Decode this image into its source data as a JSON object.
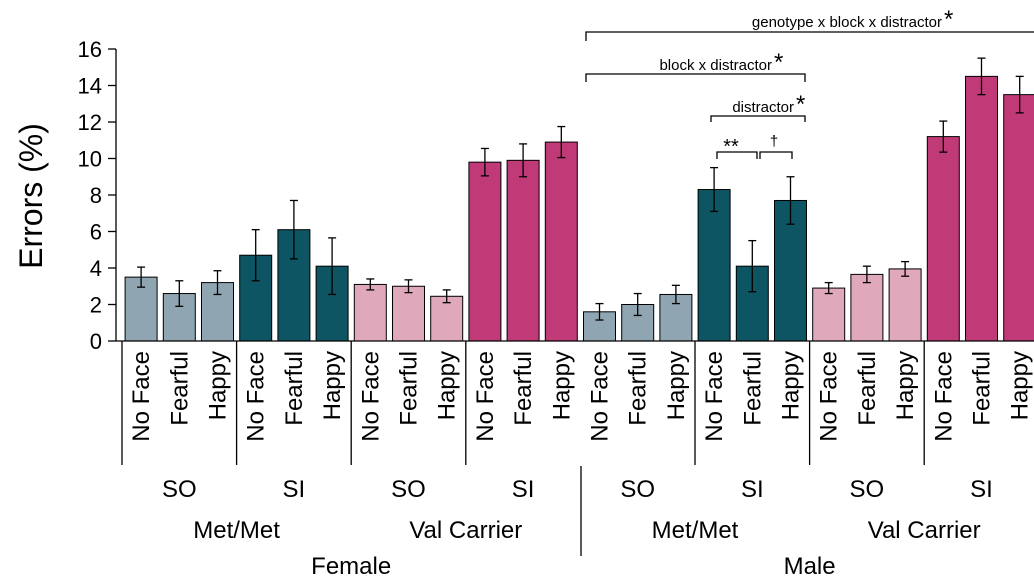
{
  "chart_data": {
    "type": "bar",
    "ylabel": "Errors (%)",
    "ylim": [
      0,
      16
    ],
    "yticks": [
      0,
      2,
      4,
      6,
      8,
      10,
      12,
      14,
      16
    ],
    "grid": false,
    "colors": {
      "met_so": "#8fa5b1",
      "met_si": "#0d5562",
      "val_so": "#e0a9bb",
      "val_si": "#c13a78"
    },
    "bars": [
      {
        "category": "No Face",
        "sex": "Female",
        "genotype": "Met/Met",
        "block": "SO",
        "value": 3.5,
        "error": 0.55,
        "color_key": "met_so"
      },
      {
        "category": "Fearful",
        "sex": "Female",
        "genotype": "Met/Met",
        "block": "SO",
        "value": 2.6,
        "error": 0.7,
        "color_key": "met_so"
      },
      {
        "category": "Happy",
        "sex": "Female",
        "genotype": "Met/Met",
        "block": "SO",
        "value": 3.2,
        "error": 0.65,
        "color_key": "met_so"
      },
      {
        "category": "No Face",
        "sex": "Female",
        "genotype": "Met/Met",
        "block": "SI",
        "value": 4.7,
        "error": 1.4,
        "color_key": "met_si"
      },
      {
        "category": "Fearful",
        "sex": "Female",
        "genotype": "Met/Met",
        "block": "SI",
        "value": 6.1,
        "error": 1.6,
        "color_key": "met_si"
      },
      {
        "category": "Happy",
        "sex": "Female",
        "genotype": "Met/Met",
        "block": "SI",
        "value": 4.1,
        "error": 1.55,
        "color_key": "met_si"
      },
      {
        "category": "No Face",
        "sex": "Female",
        "genotype": "Val Carrier",
        "block": "SO",
        "value": 3.1,
        "error": 0.3,
        "color_key": "val_so"
      },
      {
        "category": "Fearful",
        "sex": "Female",
        "genotype": "Val Carrier",
        "block": "SO",
        "value": 3.0,
        "error": 0.35,
        "color_key": "val_so"
      },
      {
        "category": "Happy",
        "sex": "Female",
        "genotype": "Val Carrier",
        "block": "SO",
        "value": 2.45,
        "error": 0.35,
        "color_key": "val_so"
      },
      {
        "category": "No Face",
        "sex": "Female",
        "genotype": "Val Carrier",
        "block": "SI",
        "value": 9.8,
        "error": 0.75,
        "color_key": "val_si"
      },
      {
        "category": "Fearful",
        "sex": "Female",
        "genotype": "Val Carrier",
        "block": "SI",
        "value": 9.9,
        "error": 0.9,
        "color_key": "val_si"
      },
      {
        "category": "Happy",
        "sex": "Female",
        "genotype": "Val Carrier",
        "block": "SI",
        "value": 10.9,
        "error": 0.85,
        "color_key": "val_si"
      },
      {
        "category": "No Face",
        "sex": "Male",
        "genotype": "Met/Met",
        "block": "SO",
        "value": 1.6,
        "error": 0.45,
        "color_key": "met_so"
      },
      {
        "category": "Fearful",
        "sex": "Male",
        "genotype": "Met/Met",
        "block": "SO",
        "value": 2.0,
        "error": 0.6,
        "color_key": "met_so"
      },
      {
        "category": "Happy",
        "sex": "Male",
        "genotype": "Met/Met",
        "block": "SO",
        "value": 2.55,
        "error": 0.5,
        "color_key": "met_so"
      },
      {
        "category": "No Face",
        "sex": "Male",
        "genotype": "Met/Met",
        "block": "SI",
        "value": 8.3,
        "error": 1.2,
        "color_key": "met_si"
      },
      {
        "category": "Fearful",
        "sex": "Male",
        "genotype": "Met/Met",
        "block": "SI",
        "value": 4.1,
        "error": 1.4,
        "color_key": "met_si"
      },
      {
        "category": "Happy",
        "sex": "Male",
        "genotype": "Met/Met",
        "block": "SI",
        "value": 7.7,
        "error": 1.3,
        "color_key": "met_si"
      },
      {
        "category": "No Face",
        "sex": "Male",
        "genotype": "Val Carrier",
        "block": "SO",
        "value": 2.9,
        "error": 0.3,
        "color_key": "val_so"
      },
      {
        "category": "Fearful",
        "sex": "Male",
        "genotype": "Val Carrier",
        "block": "SO",
        "value": 3.65,
        "error": 0.45,
        "color_key": "val_so"
      },
      {
        "category": "Happy",
        "sex": "Male",
        "genotype": "Val Carrier",
        "block": "SO",
        "value": 3.95,
        "error": 0.4,
        "color_key": "val_so"
      },
      {
        "category": "No Face",
        "sex": "Male",
        "genotype": "Val Carrier",
        "block": "SI",
        "value": 11.2,
        "error": 0.85,
        "color_key": "val_si"
      },
      {
        "category": "Fearful",
        "sex": "Male",
        "genotype": "Val Carrier",
        "block": "SI",
        "value": 14.5,
        "error": 1.0,
        "color_key": "val_si"
      },
      {
        "category": "Happy",
        "sex": "Male",
        "genotype": "Val Carrier",
        "block": "SI",
        "value": 13.5,
        "error": 1.0,
        "color_key": "val_si"
      }
    ],
    "group_labels": {
      "block": [
        "SO",
        "SI",
        "SO",
        "SI",
        "SO",
        "SI",
        "SO",
        "SI"
      ],
      "genotype": [
        "Met/Met",
        "Val Carrier",
        "Met/Met",
        "Val Carrier"
      ],
      "sex": [
        "Female",
        "Male"
      ]
    },
    "annotations": {
      "three_way": {
        "text": "genotype x block x distractor",
        "mark": "*"
      },
      "two_way": {
        "text": "block x distractor",
        "mark": "*"
      },
      "main": {
        "text": "distractor",
        "mark": "*"
      },
      "pair1": {
        "text": "**"
      },
      "pair2": {
        "text": "†"
      }
    }
  }
}
